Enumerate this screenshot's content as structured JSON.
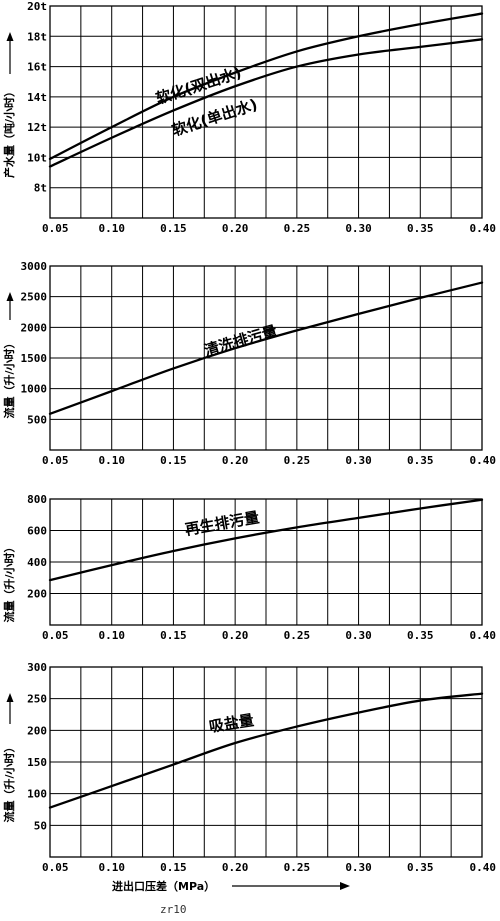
{
  "chart_data": [
    {
      "type": "line",
      "ylabel": "产水量（吨/小时）",
      "x_ticks": [
        "0.05",
        "0.10",
        "0.15",
        "0.20",
        "0.25",
        "0.30",
        "0.35",
        "0.40"
      ],
      "y_ticks": [
        "8t",
        "10t",
        "12t",
        "14t",
        "16t",
        "18t",
        "20t"
      ],
      "xlim": [
        0.05,
        0.4
      ],
      "ylim": [
        6,
        20
      ],
      "series": [
        {
          "name": "软化(双出水)",
          "x": [
            0.05,
            0.1,
            0.15,
            0.2,
            0.25,
            0.3,
            0.35,
            0.4
          ],
          "y": [
            9.9,
            12.0,
            14.0,
            15.6,
            17.0,
            18.0,
            18.8,
            19.5
          ]
        },
        {
          "name": "软化(单出水)",
          "x": [
            0.05,
            0.1,
            0.15,
            0.2,
            0.25,
            0.3,
            0.35,
            0.4
          ],
          "y": [
            9.4,
            11.3,
            13.1,
            14.7,
            16.0,
            16.8,
            17.3,
            17.8
          ]
        }
      ]
    },
    {
      "type": "line",
      "ylabel": "流量（升/小时）",
      "x_ticks": [
        "0.05",
        "0.10",
        "0.15",
        "0.20",
        "0.25",
        "0.30",
        "0.35",
        "0.40"
      ],
      "y_ticks": [
        "500",
        "1000",
        "1500",
        "2000",
        "2500",
        "3000"
      ],
      "xlim": [
        0.05,
        0.4
      ],
      "ylim": [
        0,
        3000
      ],
      "series": [
        {
          "name": "清洗排污量",
          "x": [
            0.05,
            0.1,
            0.15,
            0.2,
            0.25,
            0.3,
            0.35,
            0.4
          ],
          "y": [
            590,
            960,
            1330,
            1660,
            1950,
            2220,
            2480,
            2730
          ]
        }
      ]
    },
    {
      "type": "line",
      "ylabel": "流量（升/小时）",
      "x_ticks": [
        "0.05",
        "0.10",
        "0.15",
        "0.20",
        "0.25",
        "0.30",
        "0.35",
        "0.40"
      ],
      "y_ticks": [
        "200",
        "400",
        "600",
        "800"
      ],
      "xlim": [
        0.05,
        0.4
      ],
      "ylim": [
        0,
        800
      ],
      "series": [
        {
          "name": "再生排污量",
          "x": [
            0.05,
            0.1,
            0.15,
            0.2,
            0.25,
            0.3,
            0.35,
            0.4
          ],
          "y": [
            285,
            380,
            470,
            550,
            620,
            680,
            740,
            795
          ]
        }
      ]
    },
    {
      "type": "line",
      "ylabel": "流量（升/小时）",
      "x_ticks": [
        "0.05",
        "0.10",
        "0.15",
        "0.20",
        "0.25",
        "0.30",
        "0.35",
        "0.40"
      ],
      "y_ticks": [
        "50",
        "100",
        "150",
        "200",
        "250",
        "300"
      ],
      "xlim": [
        0.05,
        0.4
      ],
      "ylim": [
        0,
        300
      ],
      "series": [
        {
          "name": "吸盐量",
          "x": [
            0.05,
            0.1,
            0.15,
            0.2,
            0.25,
            0.3,
            0.35,
            0.4
          ],
          "y": [
            78,
            112,
            146,
            180,
            206,
            228,
            247,
            258
          ]
        }
      ]
    }
  ],
  "footer": {
    "xlabel": "进出口压差（MPa）",
    "code": "zr10"
  }
}
